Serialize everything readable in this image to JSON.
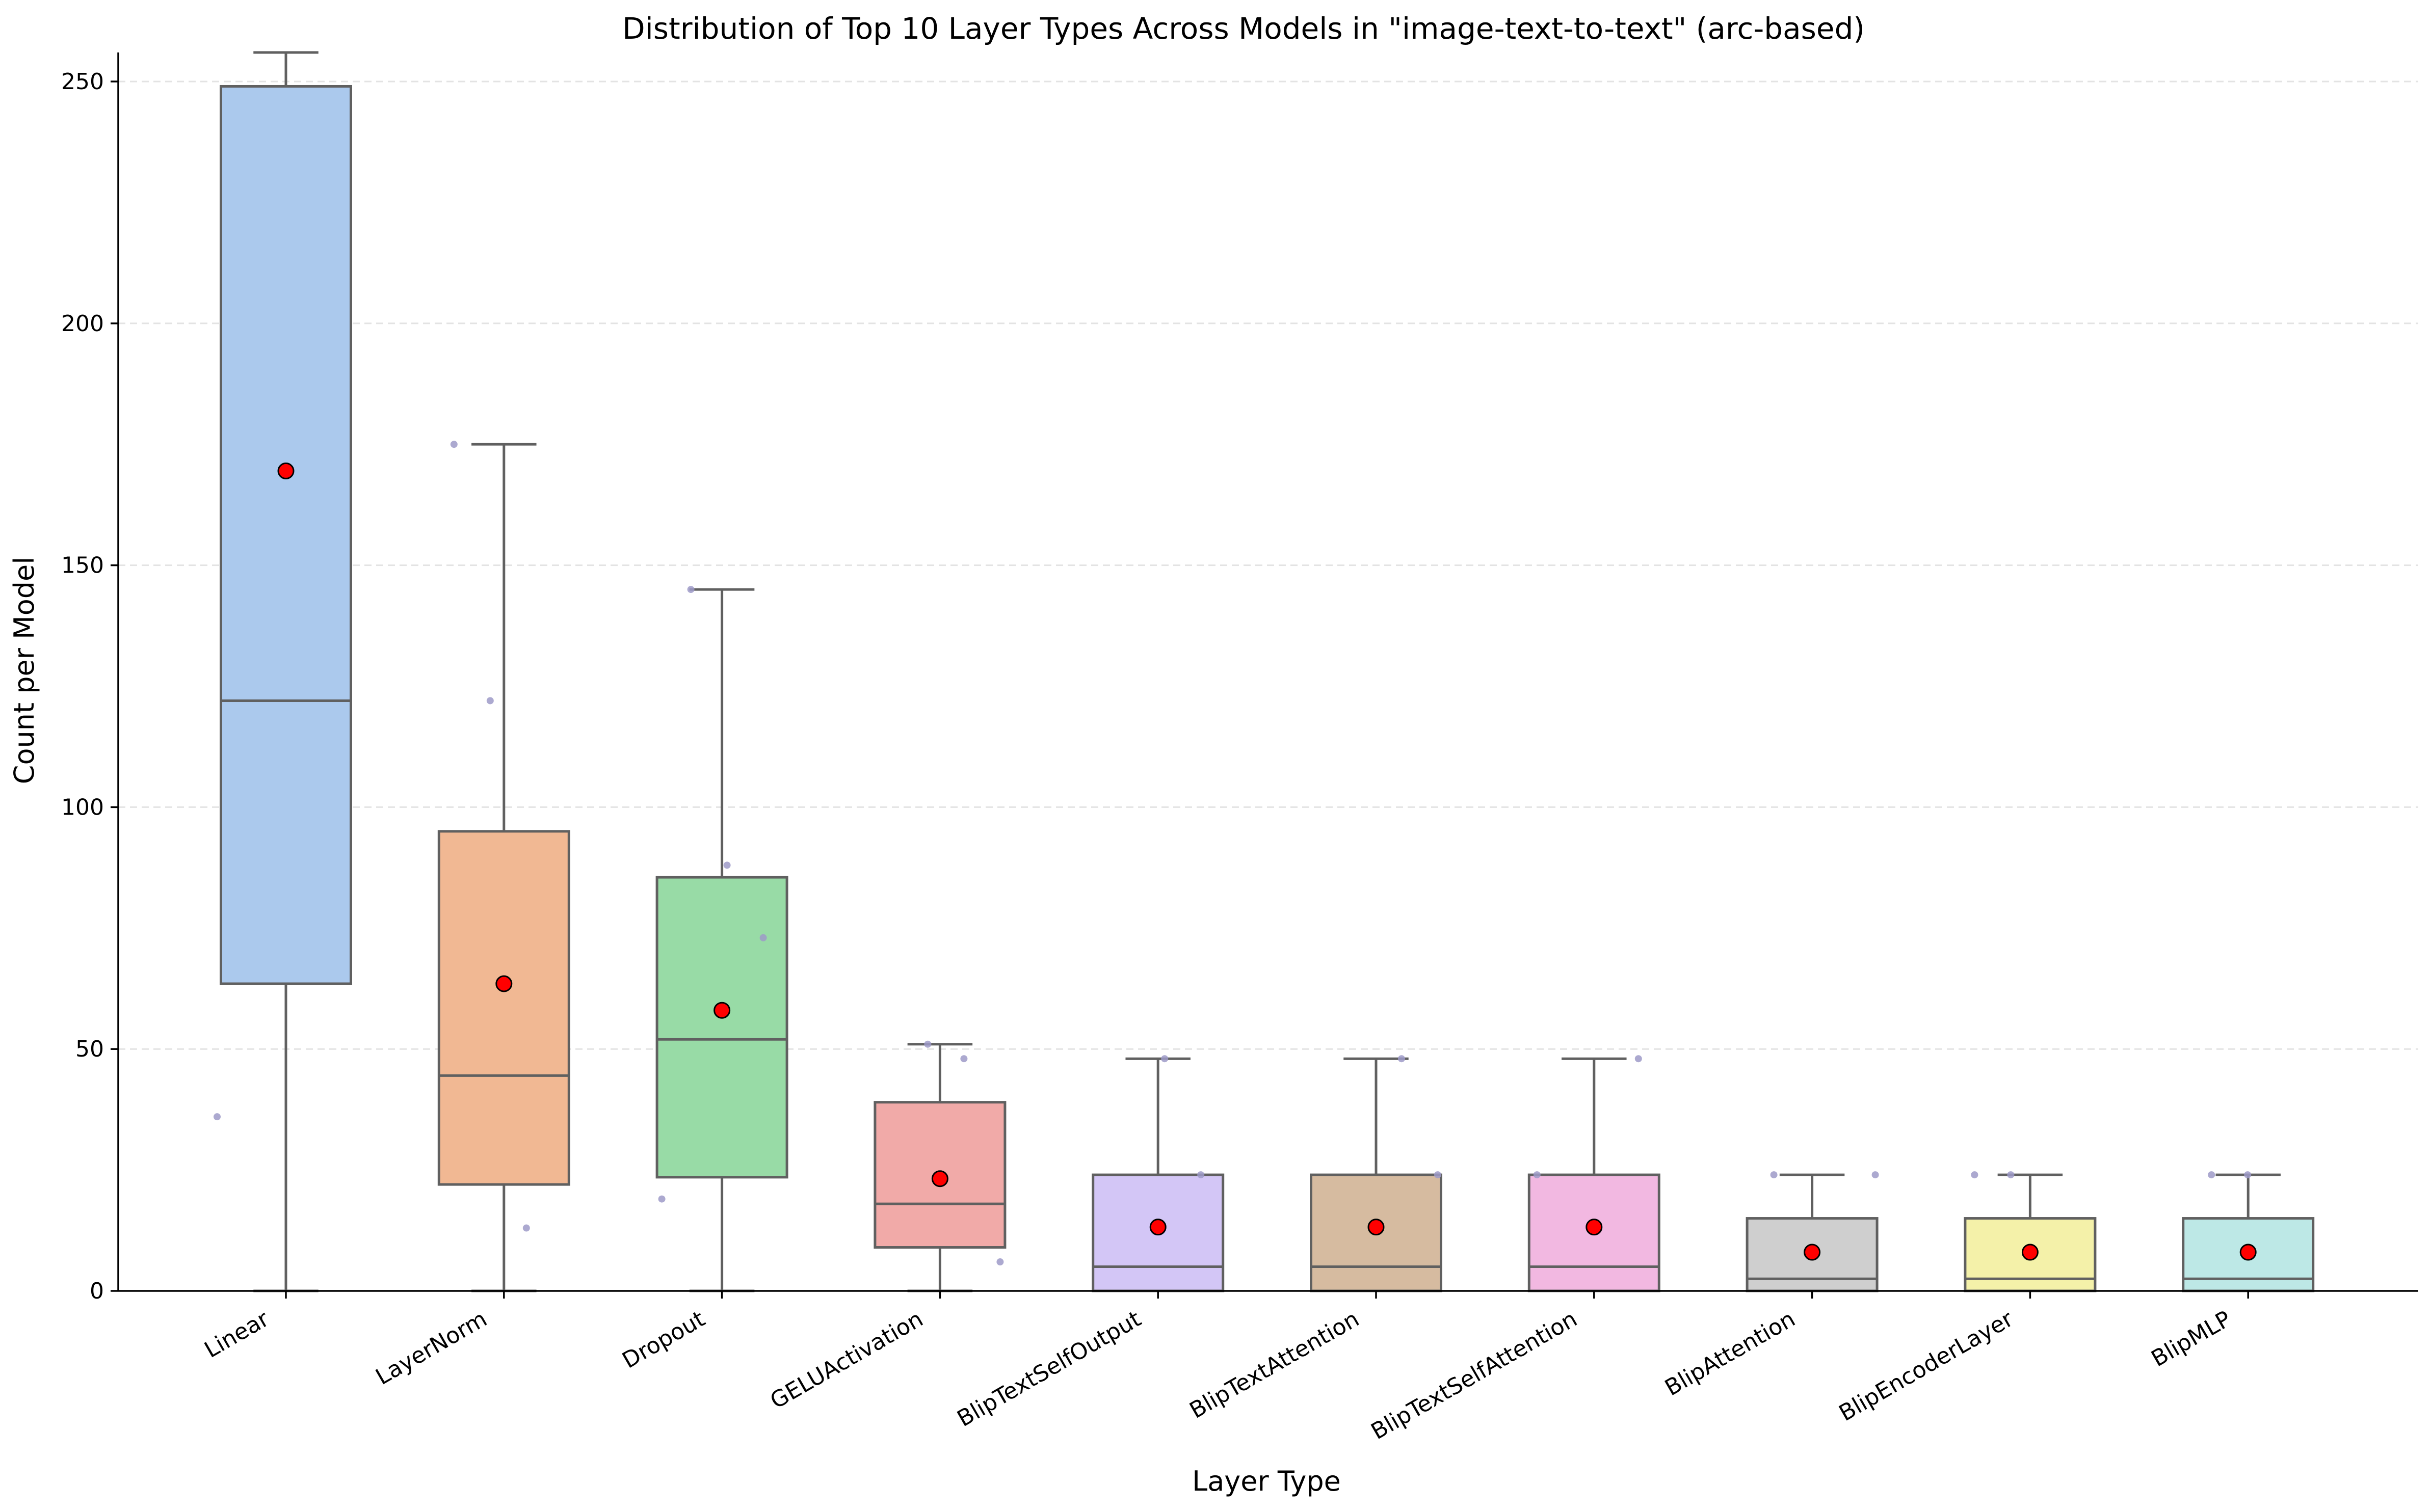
{
  "chart_data": {
    "type": "box",
    "title": "Distribution of Top 10 Layer Types Across Models in \"image-text-to-text\" (arc-based)",
    "xlabel": "Layer Type",
    "ylabel": "Count per Model",
    "ylim": [
      0,
      256
    ],
    "yticks": [
      0,
      50,
      100,
      150,
      200,
      250
    ],
    "grid": "y-dashed",
    "mean_marker_color": "#ff0000",
    "jitter_color": "#9e9ac8",
    "box_edge_color": "#606060",
    "categories": [
      "Linear",
      "LayerNorm",
      "Dropout",
      "GELUActivation",
      "BlipTextSelfOutput",
      "BlipTextAttention",
      "BlipTextSelfAttention",
      "BlipAttention",
      "BlipEncoderLayer",
      "BlipMLP"
    ],
    "series": [
      {
        "category": "Linear",
        "color": "#abc9ed",
        "min": 0,
        "q1": 63.5,
        "median": 122,
        "q3": 249,
        "max": 256,
        "mean": 169.5,
        "points": [
          36
        ]
      },
      {
        "category": "LayerNorm",
        "color": "#f1b893",
        "min": 0,
        "q1": 22,
        "median": 44.5,
        "q3": 95,
        "max": 175,
        "mean": 63.5,
        "points": [
          175,
          122,
          13
        ]
      },
      {
        "category": "Dropout",
        "color": "#98dba6",
        "min": 0,
        "q1": 23.5,
        "median": 52,
        "q3": 85.5,
        "max": 145,
        "mean": 58,
        "points": [
          145,
          88,
          73,
          19
        ]
      },
      {
        "category": "GELUActivation",
        "color": "#f1aaa8",
        "min": 0,
        "q1": 9,
        "median": 18,
        "q3": 39,
        "max": 51,
        "mean": 23.2,
        "points": [
          51,
          48,
          6
        ]
      },
      {
        "category": "BlipTextSelfOutput",
        "color": "#d3c6f6",
        "min": 0,
        "q1": 0,
        "median": 5,
        "q3": 24,
        "max": 48,
        "mean": 13.2,
        "points": [
          48,
          24
        ]
      },
      {
        "category": "BlipTextAttention",
        "color": "#d6bba0",
        "min": 0,
        "q1": 0,
        "median": 5,
        "q3": 24,
        "max": 48,
        "mean": 13.2,
        "points": [
          48,
          24
        ]
      },
      {
        "category": "BlipTextSelfAttention",
        "color": "#f2b8e1",
        "min": 0,
        "q1": 0,
        "median": 5,
        "q3": 24,
        "max": 48,
        "mean": 13.2,
        "points": [
          48,
          24
        ]
      },
      {
        "category": "BlipAttention",
        "color": "#cfcfcf",
        "min": 0,
        "q1": 0,
        "median": 2.5,
        "q3": 15,
        "max": 24,
        "mean": 8,
        "points": [
          24,
          24
        ]
      },
      {
        "category": "BlipEncoderLayer",
        "color": "#f4f1a9",
        "min": 0,
        "q1": 0,
        "median": 2.5,
        "q3": 15,
        "max": 24,
        "mean": 8,
        "points": [
          24,
          24
        ]
      },
      {
        "category": "BlipMLP",
        "color": "#bde8e6",
        "min": 0,
        "q1": 0,
        "median": 2.5,
        "q3": 15,
        "max": 24,
        "mean": 8,
        "points": [
          24,
          24
        ]
      }
    ]
  }
}
